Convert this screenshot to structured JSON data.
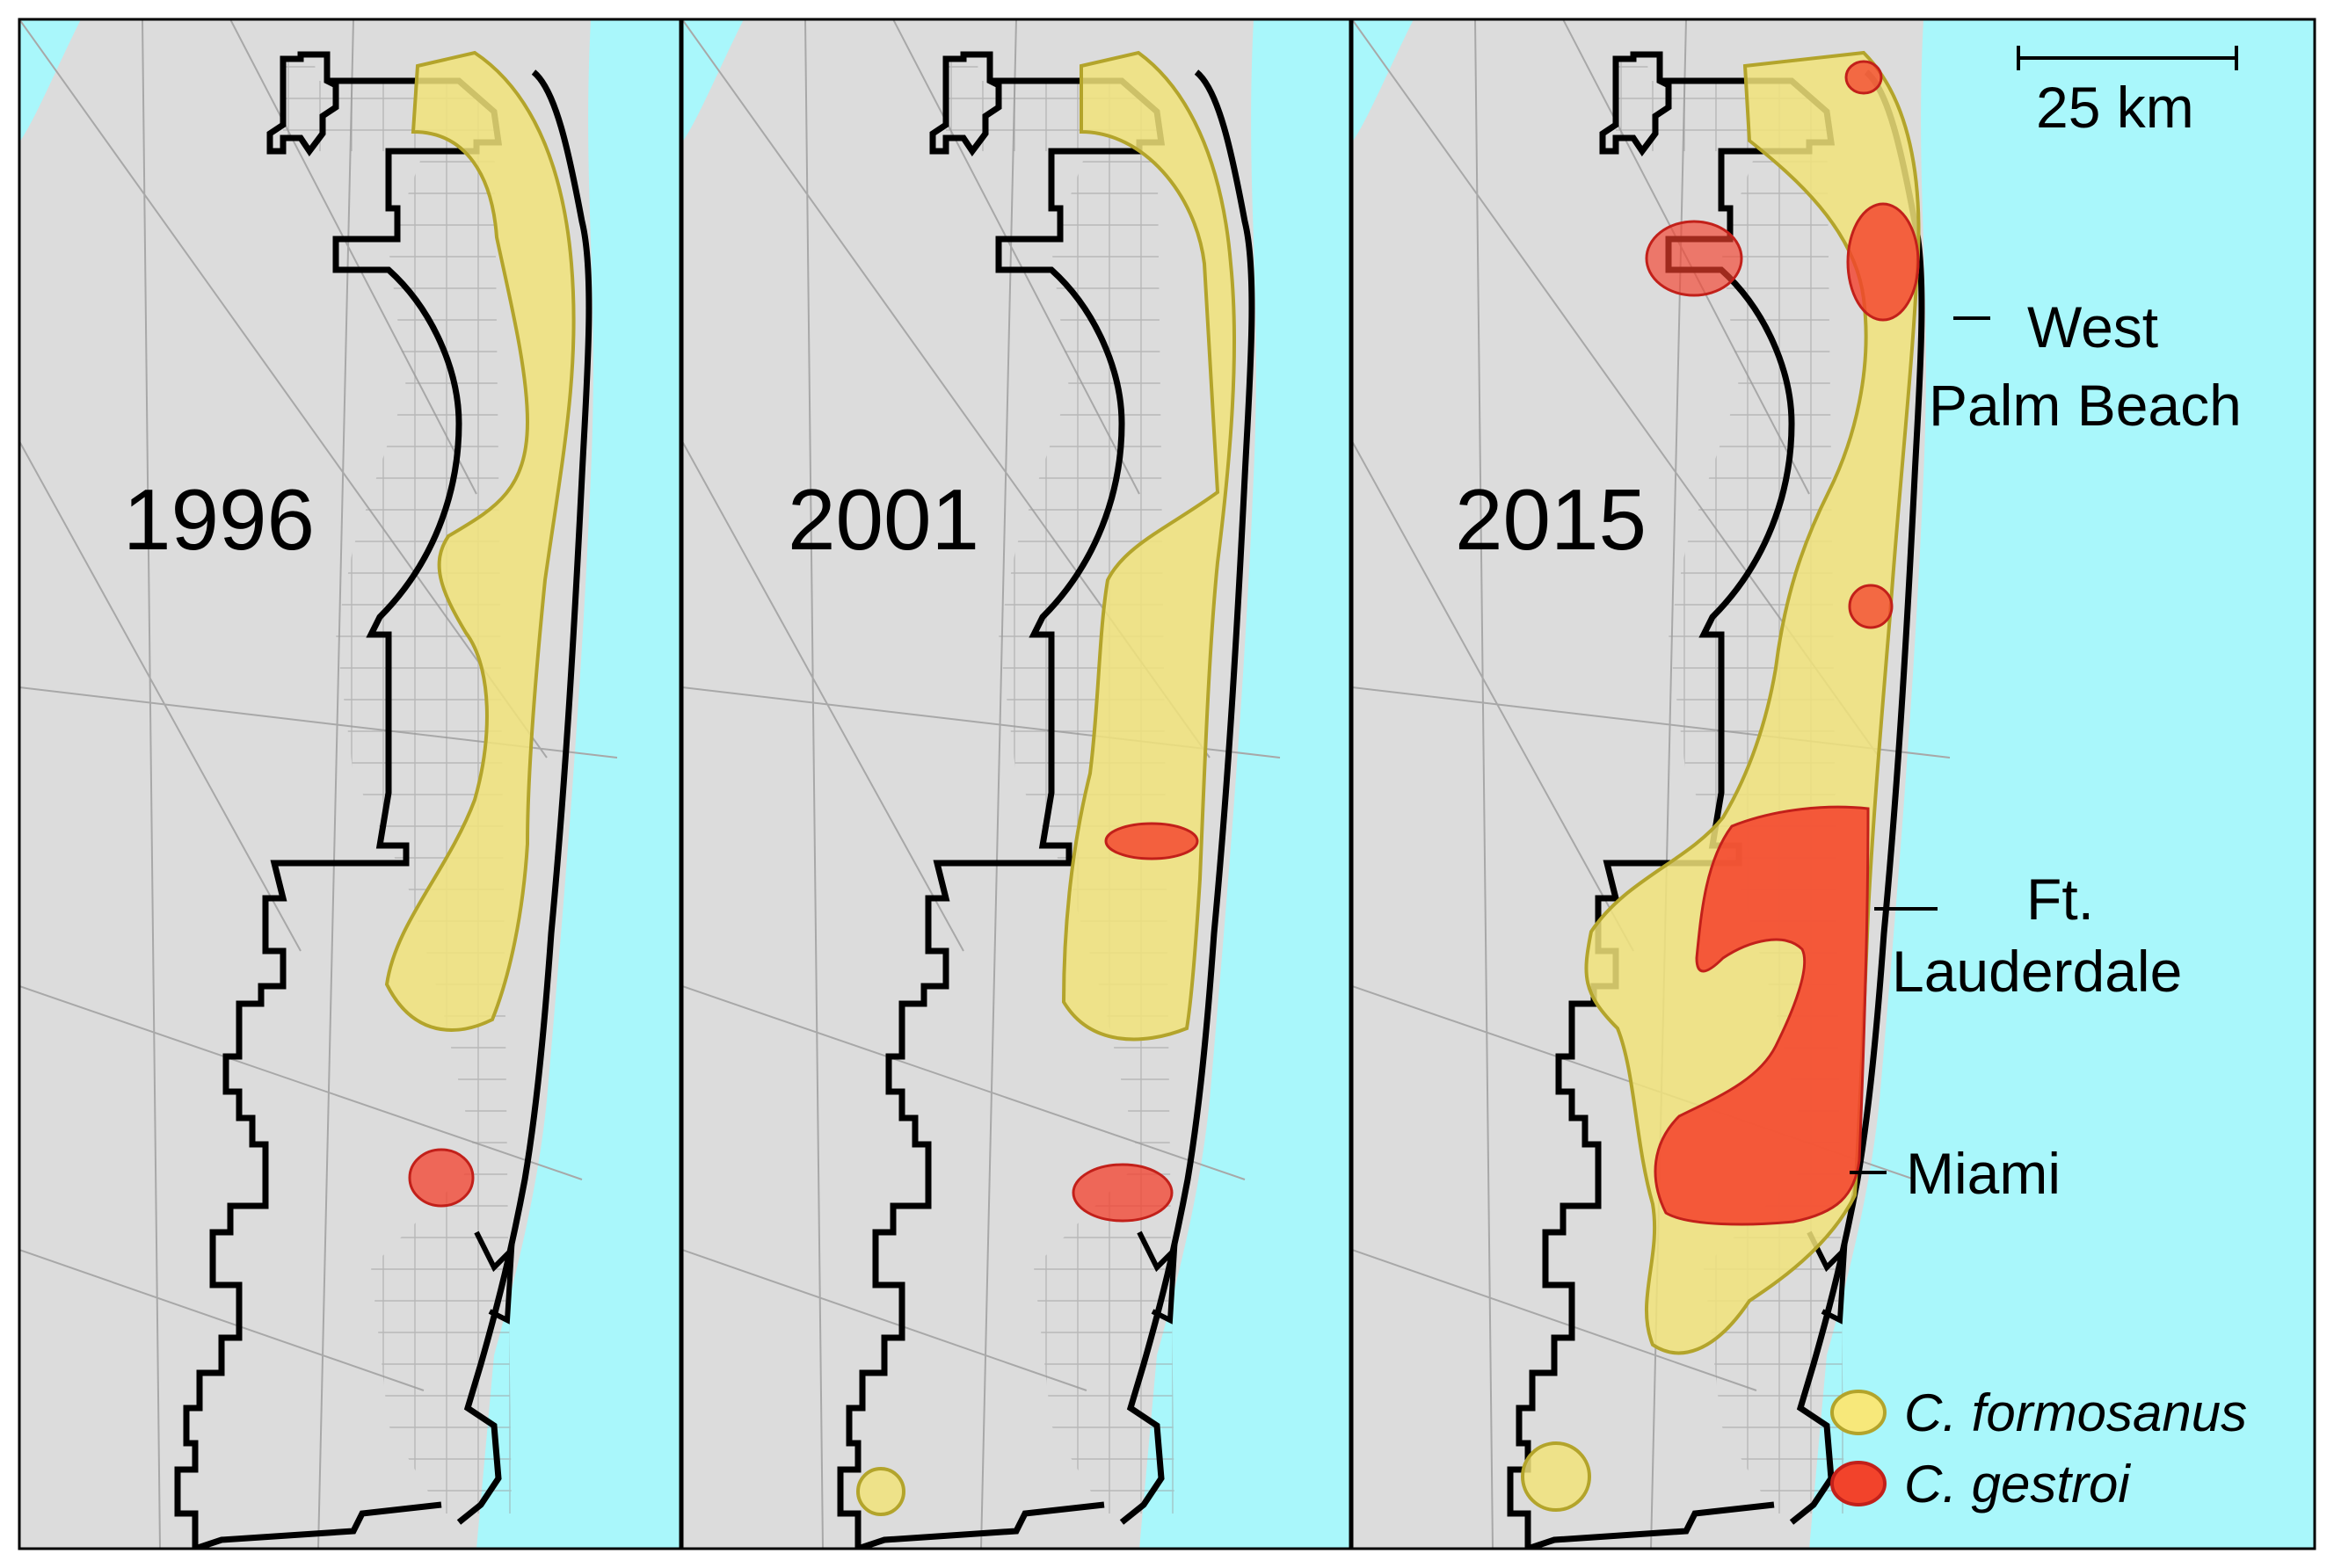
{
  "panels": [
    {
      "id": "p1996",
      "year": "1996"
    },
    {
      "id": "p2001",
      "year": "2001"
    },
    {
      "id": "p2015",
      "year": "2015"
    }
  ],
  "cities": {
    "west_palm_beach_line1": "West",
    "west_palm_beach_line2": "Palm Beach",
    "ft_lauderdale_line1": "Ft.",
    "ft_lauderdale_line2": "Lauderdale",
    "miami": "Miami"
  },
  "scale_bar": {
    "label": "25 km",
    "distance_km": 25
  },
  "legend": [
    {
      "label": "C. formosanus",
      "color": "#f7e87a"
    },
    {
      "label": "C. gestroi",
      "color": "#f2432b"
    }
  ],
  "colors": {
    "ocean": "#a9f7fb",
    "land": "#dcdcdc",
    "boundary": "#000000",
    "formosanus_fill": "#f1e37a",
    "formosanus_stroke": "#b3a42b",
    "gestroi_fill": "#f4402c",
    "gestroi_stroke": "#c2201a"
  }
}
